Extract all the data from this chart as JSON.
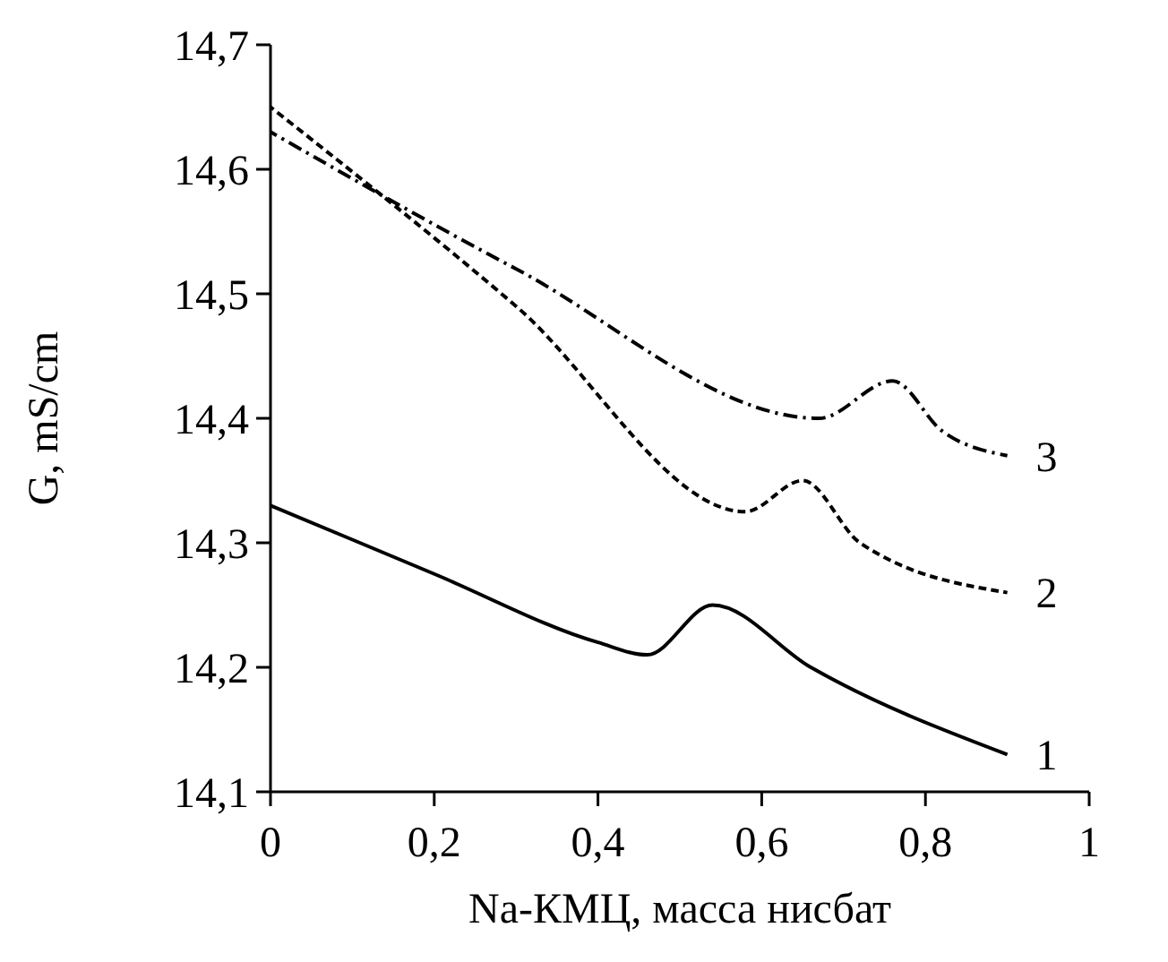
{
  "chart_data": {
    "type": "line",
    "xlabel": "Na-КМЦ, масса нисбат",
    "ylabel": "G, mS/cm",
    "xlim": [
      0,
      1
    ],
    "xticks": [
      0,
      {
        "value": 0.2,
        "label": "0,2"
      },
      {
        "value": 0.4,
        "label": "0,4"
      },
      {
        "value": 0.6,
        "label": "0,6"
      },
      {
        "value": 0.8,
        "label": "0,8"
      },
      1
    ],
    "ylim": [
      14.1,
      14.7
    ],
    "yticks": [
      {
        "value": 14.1,
        "label": "14,1"
      },
      {
        "value": 14.2,
        "label": "14,2"
      },
      {
        "value": 14.3,
        "label": "14,3"
      },
      {
        "value": 14.4,
        "label": "14,4"
      },
      {
        "value": 14.5,
        "label": "14,5"
      },
      {
        "value": 14.6,
        "label": "14,6"
      },
      {
        "value": 14.7,
        "label": "14,7"
      }
    ],
    "grid": false,
    "legend": false,
    "marker": "none",
    "series": [
      {
        "name": "1",
        "color": "#000000",
        "line_style": "solid",
        "x": [
          0,
          0.2,
          0.4,
          0.46,
          0.54,
          0.66,
          0.9
        ],
        "values": [
          14.33,
          14.275,
          14.22,
          14.21,
          14.25,
          14.2,
          14.13
        ]
      },
      {
        "name": "2",
        "color": "#000000",
        "line_style": "dashed",
        "x": [
          0,
          0.3,
          0.58,
          0.65,
          0.72,
          0.9
        ],
        "values": [
          14.65,
          14.49,
          14.325,
          14.35,
          14.3,
          14.26
        ]
      },
      {
        "name": "3",
        "color": "#000000",
        "line_style": "dashdot",
        "x": [
          0,
          0.3,
          0.67,
          0.76,
          0.82,
          0.9
        ],
        "values": [
          14.63,
          14.52,
          14.4,
          14.43,
          14.39,
          14.37
        ]
      }
    ]
  }
}
